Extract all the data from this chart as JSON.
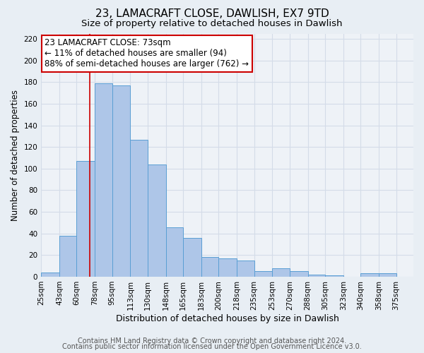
{
  "title": "23, LAMACRAFT CLOSE, DAWLISH, EX7 9TD",
  "subtitle": "Size of property relative to detached houses in Dawlish",
  "xlabel": "Distribution of detached houses by size in Dawlish",
  "ylabel": "Number of detached properties",
  "footer_line1": "Contains HM Land Registry data © Crown copyright and database right 2024.",
  "footer_line2": "Contains public sector information licensed under the Open Government Licence v3.0.",
  "bar_left_edges": [
    25,
    43,
    60,
    78,
    95,
    113,
    130,
    148,
    165,
    183,
    200,
    218,
    235,
    253,
    270,
    288,
    305,
    323,
    340,
    358
  ],
  "bar_widths": [
    18,
    17,
    18,
    17,
    18,
    17,
    18,
    17,
    18,
    17,
    18,
    17,
    18,
    17,
    18,
    17,
    18,
    17,
    18,
    17
  ],
  "bar_heights": [
    4,
    38,
    107,
    179,
    177,
    127,
    104,
    46,
    36,
    18,
    17,
    15,
    5,
    8,
    5,
    2,
    1,
    0,
    3,
    3
  ],
  "tick_labels": [
    "25sqm",
    "43sqm",
    "60sqm",
    "78sqm",
    "95sqm",
    "113sqm",
    "130sqm",
    "148sqm",
    "165sqm",
    "183sqm",
    "200sqm",
    "218sqm",
    "235sqm",
    "253sqm",
    "270sqm",
    "288sqm",
    "305sqm",
    "323sqm",
    "340sqm",
    "358sqm",
    "375sqm"
  ],
  "tick_positions": [
    25,
    43,
    60,
    78,
    95,
    113,
    130,
    148,
    165,
    183,
    200,
    218,
    235,
    253,
    270,
    288,
    305,
    323,
    340,
    358,
    375
  ],
  "bar_color": "#aec6e8",
  "bar_edge_color": "#5a9fd4",
  "vline_x": 73,
  "vline_color": "#cc0000",
  "annotation_line1": "23 LAMACRAFT CLOSE: 73sqm",
  "annotation_line2": "← 11% of detached houses are smaller (94)",
  "annotation_line3": "88% of semi-detached houses are larger (762) →",
  "annotation_box_color": "#ffffff",
  "annotation_box_edge_color": "#cc0000",
  "ylim": [
    0,
    225
  ],
  "yticks": [
    0,
    20,
    40,
    60,
    80,
    100,
    120,
    140,
    160,
    180,
    200,
    220
  ],
  "xlim_left": 25,
  "xlim_right": 392,
  "bg_color": "#e8eef4",
  "plot_bg_color": "#eef2f7",
  "grid_color": "#d4dce8",
  "title_fontsize": 11,
  "subtitle_fontsize": 9.5,
  "xlabel_fontsize": 9,
  "ylabel_fontsize": 8.5,
  "tick_fontsize": 7.5,
  "annotation_fontsize": 8.5,
  "footer_fontsize": 7
}
